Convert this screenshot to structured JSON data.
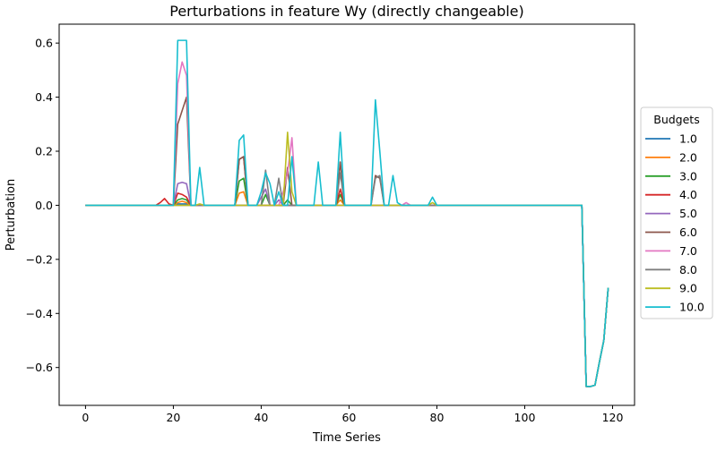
{
  "chart_data": {
    "type": "line",
    "title": "Perturbations in feature Wy (directly changeable)",
    "xlabel": "Time Series",
    "ylabel": "Perturbation",
    "xlim": [
      -6,
      125
    ],
    "ylim": [
      -0.74,
      0.67
    ],
    "xticks": [
      0,
      20,
      40,
      60,
      80,
      100,
      120
    ],
    "xtick_labels": [
      "0",
      "20",
      "40",
      "60",
      "80",
      "100",
      "120"
    ],
    "yticks": [
      0.6,
      0.4,
      0.2,
      0.0,
      -0.2,
      -0.4,
      -0.6
    ],
    "ytick_labels": [
      "0.6",
      "0.4",
      "0.2",
      "0.0",
      "−0.2",
      "−0.4",
      "−0.6"
    ],
    "grid": false,
    "x": [
      0,
      1,
      2,
      3,
      4,
      5,
      6,
      7,
      8,
      9,
      10,
      11,
      12,
      13,
      14,
      15,
      16,
      17,
      18,
      19,
      20,
      21,
      22,
      23,
      24,
      25,
      26,
      27,
      28,
      29,
      30,
      31,
      32,
      33,
      34,
      35,
      36,
      37,
      38,
      39,
      40,
      41,
      42,
      43,
      44,
      45,
      46,
      47,
      48,
      49,
      50,
      51,
      52,
      53,
      54,
      55,
      56,
      57,
      58,
      59,
      60,
      61,
      62,
      63,
      64,
      65,
      66,
      67,
      68,
      69,
      70,
      71,
      72,
      73,
      74,
      75,
      76,
      77,
      78,
      79,
      80,
      81,
      82,
      83,
      84,
      85,
      86,
      87,
      88,
      89,
      90,
      91,
      92,
      93,
      94,
      95,
      96,
      97,
      98,
      99,
      100,
      101,
      102,
      103,
      104,
      105,
      106,
      107,
      108,
      109,
      110,
      111,
      112,
      113,
      114,
      115,
      116,
      117,
      118,
      119
    ],
    "base_tail": {
      "113": 0.0,
      "114": -0.67,
      "115": -0.67,
      "116": -0.665,
      "117": -0.58,
      "118": -0.5,
      "119": -0.305
    },
    "legend": {
      "title": "Budgets",
      "location": "center right (outside plot)"
    },
    "series": [
      {
        "name": "1.0",
        "color": "#1f77b4",
        "spikes": {
          "21": 0.005,
          "22": 0.005,
          "23": 0.005
        }
      },
      {
        "name": "2.0",
        "color": "#ff7f0e",
        "spikes": {
          "21": 0.01,
          "22": 0.015,
          "23": 0.01,
          "35": 0.045,
          "36": 0.05,
          "58": 0.02
        }
      },
      {
        "name": "3.0",
        "color": "#2ca02c",
        "spikes": {
          "21": 0.02,
          "22": 0.025,
          "23": 0.02,
          "35": 0.09,
          "36": 0.1,
          "41": 0.04,
          "46": 0.02,
          "58": 0.04
        }
      },
      {
        "name": "4.0",
        "color": "#d62728",
        "spikes": {
          "17": 0.01,
          "18": 0.025,
          "19": 0.005,
          "21": 0.045,
          "22": 0.04,
          "23": 0.03,
          "35": 0.17,
          "36": 0.18,
          "58": 0.06
        }
      },
      {
        "name": "5.0",
        "color": "#9467bd",
        "spikes": {
          "21": 0.08,
          "22": 0.085,
          "23": 0.08,
          "40": 0.03,
          "41": 0.06,
          "44": 0.02
        }
      },
      {
        "name": "6.0",
        "color": "#8c564b",
        "spikes": {
          "21": 0.3,
          "22": 0.35,
          "23": 0.4,
          "35": 0.17,
          "36": 0.18,
          "46": 0.14,
          "58": 0.16,
          "66": 0.11,
          "67": 0.1
        }
      },
      {
        "name": "7.0",
        "color": "#e377c2",
        "spikes": {
          "21": 0.45,
          "22": 0.53,
          "23": 0.48,
          "45": 0.05,
          "46": 0.12,
          "47": 0.25,
          "73": 0.01
        }
      },
      {
        "name": "8.0",
        "color": "#7f7f7f",
        "spikes": {
          "41": 0.13,
          "44": 0.1,
          "58": 0.12,
          "66": 0.1,
          "67": 0.11
        }
      },
      {
        "name": "9.0",
        "color": "#bcbd22",
        "spikes": {
          "46": 0.27,
          "47": 0.05,
          "26": 0.005,
          "79": 0.01
        }
      },
      {
        "name": "10.0",
        "color": "#17becf",
        "spikes": {
          "21": 0.61,
          "22": 0.61,
          "23": 0.61,
          "26": 0.14,
          "35": 0.24,
          "36": 0.26,
          "40": 0.05,
          "41": 0.12,
          "42": 0.08,
          "44": 0.05,
          "47": 0.18,
          "53": 0.16,
          "58": 0.27,
          "66": 0.39,
          "67": 0.2,
          "70": 0.11,
          "71": 0.01,
          "79": 0.03
        }
      }
    ]
  }
}
